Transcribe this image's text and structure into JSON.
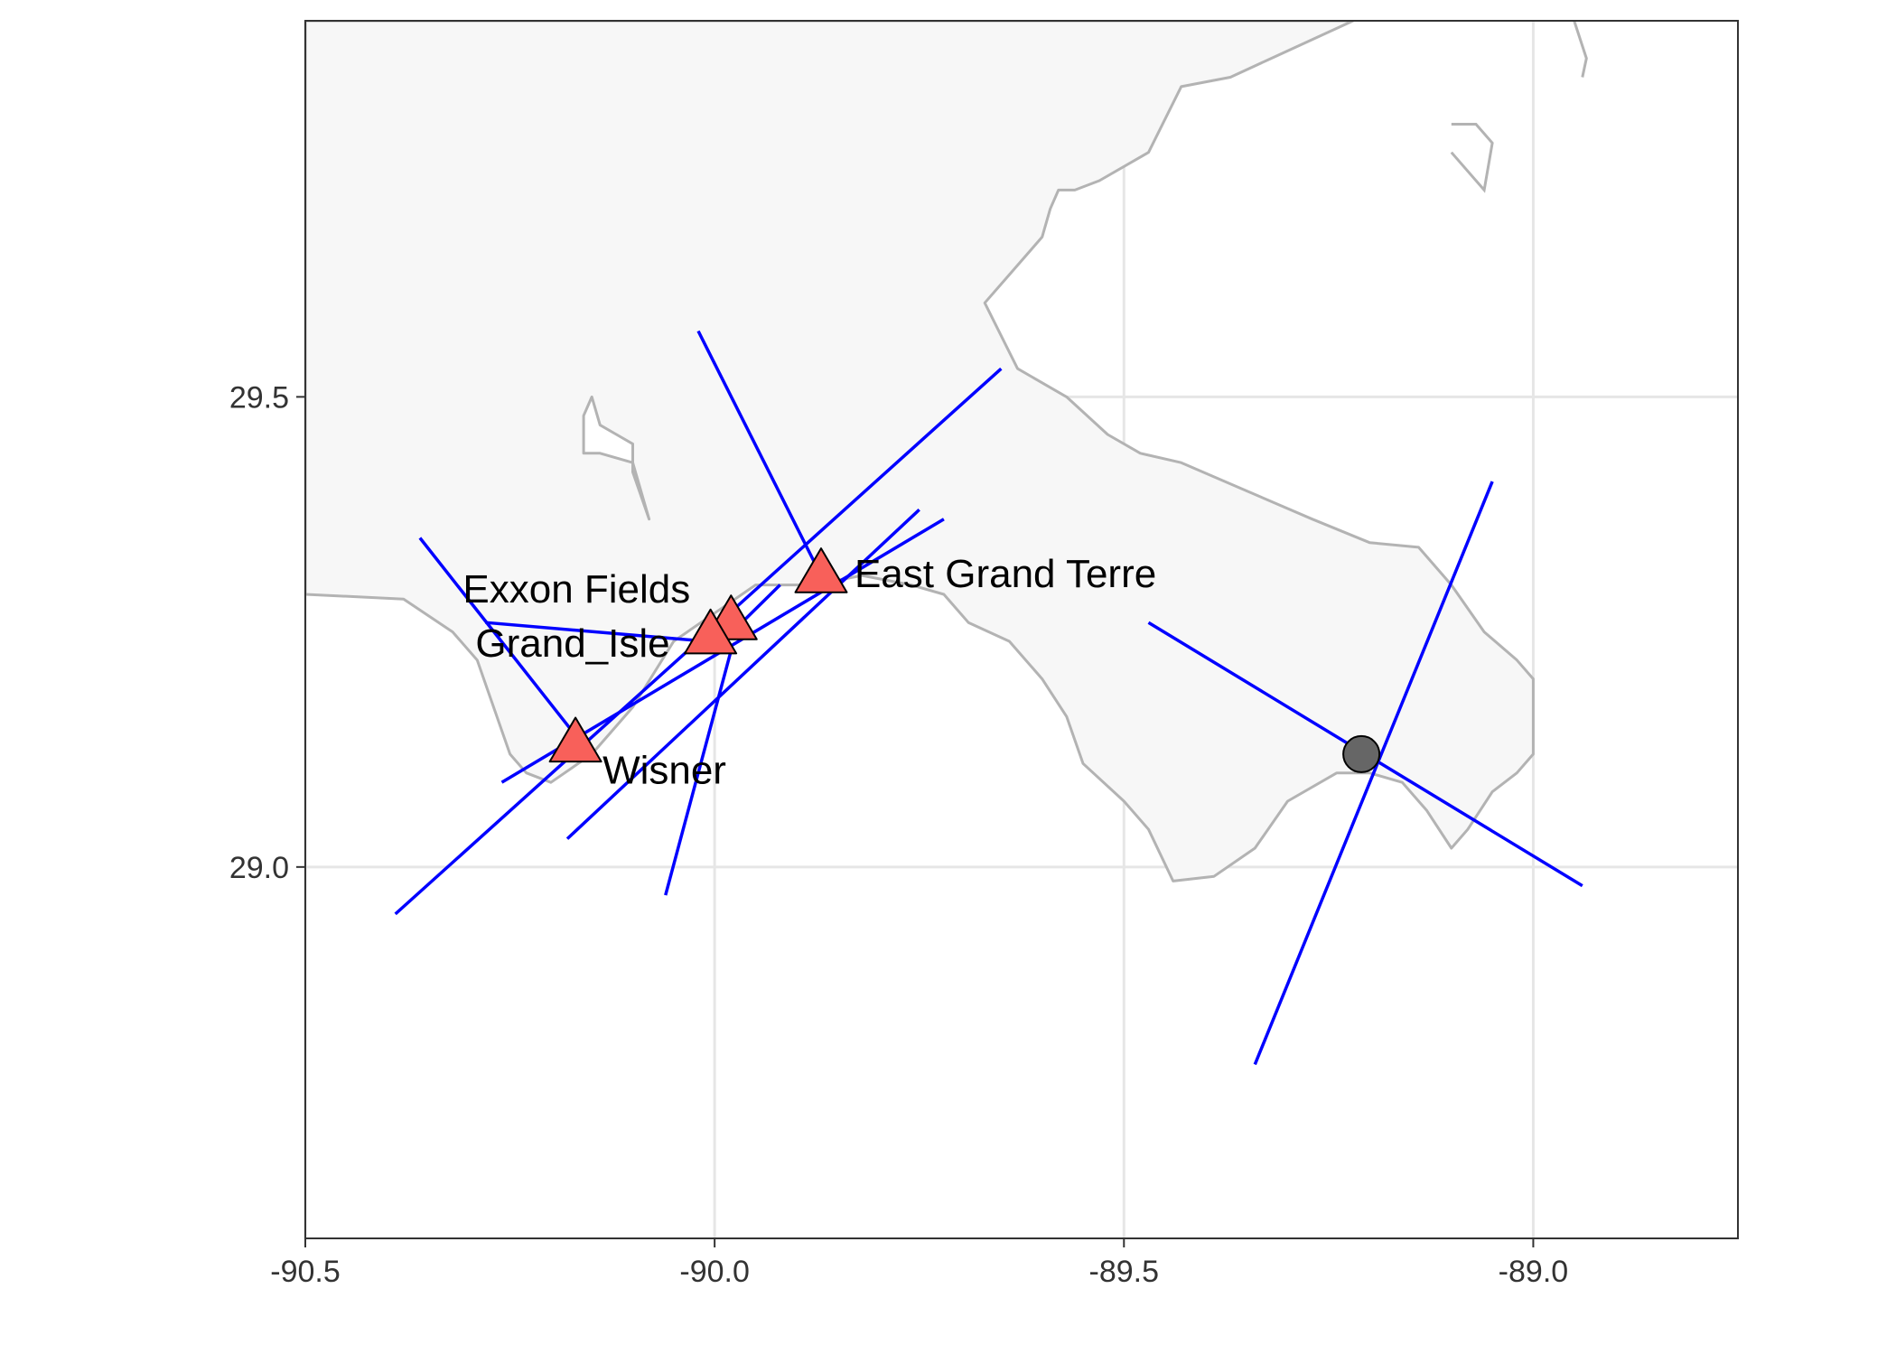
{
  "map": {
    "x_axis": {
      "range": [
        -90.5,
        -88.75
      ],
      "ticks": [
        {
          "value": -90.5,
          "label": "-90.5"
        },
        {
          "value": -90.0,
          "label": "-90.0"
        },
        {
          "value": -89.5,
          "label": "-89.5"
        },
        {
          "value": -89.0,
          "label": "-89.0"
        }
      ]
    },
    "y_axis": {
      "range": [
        28.605,
        29.9
      ],
      "ticks": [
        {
          "value": 29.5,
          "label": "29.5"
        },
        {
          "value": 29.0,
          "label": "29.0"
        }
      ]
    },
    "grid": true,
    "colors": {
      "land_fill": "#f7f7f7",
      "land_stroke": "#b3b3b3",
      "bearing_line": "#0000ff",
      "station_fill": "#f8605a",
      "target_fill": "#666666",
      "grid": "#e6e6e6",
      "axis": "#333333"
    },
    "coastline": [
      [
        -90.5,
        29.29
      ],
      [
        -90.38,
        29.285
      ],
      [
        -90.32,
        29.25
      ],
      [
        -90.29,
        29.22
      ],
      [
        -90.25,
        29.12
      ],
      [
        -90.23,
        29.1
      ],
      [
        -90.2,
        29.09
      ],
      [
        -90.15,
        29.12
      ],
      [
        -90.1,
        29.17
      ],
      [
        -90.05,
        29.24
      ],
      [
        -90.0,
        29.27
      ],
      [
        -89.95,
        29.3
      ],
      [
        -89.88,
        29.3
      ],
      [
        -89.82,
        29.31
      ],
      [
        -89.76,
        29.3
      ],
      [
        -89.72,
        29.29
      ],
      [
        -89.69,
        29.26
      ],
      [
        -89.64,
        29.24
      ],
      [
        -89.6,
        29.2
      ],
      [
        -89.57,
        29.16
      ],
      [
        -89.55,
        29.11
      ],
      [
        -89.5,
        29.07
      ],
      [
        -89.47,
        29.04
      ],
      [
        -89.44,
        28.985
      ],
      [
        -89.39,
        28.99
      ],
      [
        -89.34,
        29.02
      ],
      [
        -89.3,
        29.07
      ],
      [
        -89.24,
        29.1
      ],
      [
        -89.2,
        29.1
      ],
      [
        -89.16,
        29.09
      ],
      [
        -89.13,
        29.06
      ],
      [
        -89.1,
        29.02
      ],
      [
        -89.08,
        29.04
      ],
      [
        -89.05,
        29.08
      ],
      [
        -89.02,
        29.1
      ],
      [
        -89.0,
        29.12
      ],
      [
        -89.0,
        29.2
      ],
      [
        -89.02,
        29.22
      ],
      [
        -89.06,
        29.25
      ],
      [
        -89.1,
        29.3
      ],
      [
        -89.14,
        29.34
      ],
      [
        -89.2,
        29.345
      ],
      [
        -89.27,
        29.37
      ],
      [
        -89.35,
        29.4
      ],
      [
        -89.43,
        29.43
      ],
      [
        -89.48,
        29.44
      ],
      [
        -89.52,
        29.46
      ],
      [
        -89.57,
        29.5
      ],
      [
        -89.63,
        29.53
      ],
      [
        -89.67,
        29.6
      ],
      [
        -89.64,
        29.63
      ],
      [
        -89.6,
        29.67
      ],
      [
        -89.59,
        29.7
      ],
      [
        -89.58,
        29.72
      ],
      [
        -89.56,
        29.72
      ],
      [
        -89.53,
        29.73
      ],
      [
        -89.47,
        29.76
      ],
      [
        -89.43,
        29.83
      ],
      [
        -89.37,
        29.84
      ],
      [
        -89.32,
        29.86
      ],
      [
        -89.22,
        29.9
      ],
      [
        -89.25,
        29.9
      ],
      [
        -89.5,
        29.9
      ],
      [
        -90.5,
        29.9
      ]
    ],
    "bay_shore": [
      [
        -90.08,
        29.37
      ],
      [
        -90.1,
        29.42
      ],
      [
        -90.1,
        29.45
      ],
      [
        -90.12,
        29.46
      ],
      [
        -90.14,
        29.47
      ],
      [
        -90.15,
        29.5
      ],
      [
        -90.16,
        29.48
      ],
      [
        -90.16,
        29.44
      ],
      [
        -90.14,
        29.44
      ],
      [
        -90.1,
        29.43
      ]
    ],
    "island_outline": [
      [
        -88.95,
        29.9
      ],
      [
        -88.935,
        29.86
      ],
      [
        -88.94,
        29.84
      ]
    ],
    "islet_outline": [
      [
        -89.1,
        29.76
      ],
      [
        -89.06,
        29.72
      ],
      [
        -89.05,
        29.77
      ],
      [
        -89.07,
        29.79
      ],
      [
        -89.1,
        29.79
      ]
    ],
    "bearing_lines": [
      [
        [
          -89.34,
          28.79
        ],
        [
          -89.05,
          29.41
        ]
      ],
      [
        [
          -89.47,
          29.26
        ],
        [
          -88.94,
          28.98
        ]
      ],
      [
        [
          -89.65,
          29.53
        ],
        [
          -90.39,
          28.95
        ]
      ],
      [
        [
          -89.72,
          29.37
        ],
        [
          -90.26,
          29.09
        ]
      ],
      [
        [
          -89.75,
          29.38
        ],
        [
          -90.18,
          29.03
        ]
      ],
      [
        [
          -90.02,
          29.57
        ],
        [
          -89.87,
          29.31
        ]
      ],
      [
        [
          -89.92,
          29.3
        ],
        [
          -89.99,
          29.24
        ]
      ],
      [
        [
          -90.28,
          29.26
        ],
        [
          -90.01,
          29.24
        ]
      ],
      [
        [
          -90.36,
          29.35
        ],
        [
          -90.17,
          29.14
        ]
      ],
      [
        [
          -89.98,
          29.23
        ],
        [
          -90.06,
          28.97
        ]
      ]
    ],
    "stations": [
      {
        "name": "Exxon Fields",
        "lon": -89.98,
        "lat": 29.26
      },
      {
        "name": "Grand_Isle",
        "lon": -90.005,
        "lat": 29.245
      },
      {
        "name": "East Grand Terre",
        "lon": -89.87,
        "lat": 29.31
      },
      {
        "name": "Wisner",
        "lon": -90.17,
        "lat": 29.13
      }
    ],
    "estimated_location": {
      "lon": -89.21,
      "lat": 29.12
    }
  }
}
